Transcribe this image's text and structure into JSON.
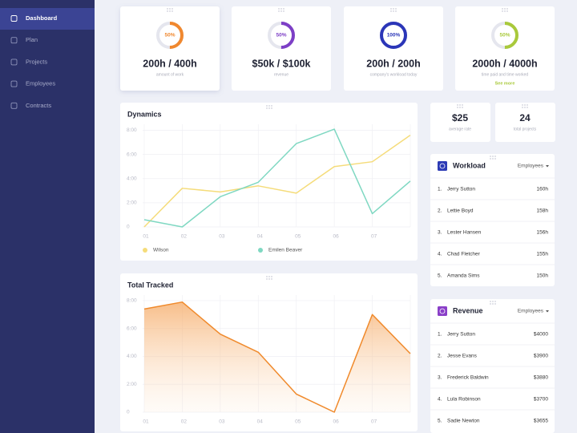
{
  "sidebar": {
    "items": [
      "Dashboard",
      "Plan",
      "Projects",
      "Employees",
      "Contracts"
    ],
    "active": 0
  },
  "stats": [
    {
      "percent": 50,
      "percent_label": "50%",
      "color": "#f0882f",
      "value": "200h / 400h",
      "caption": "amount of work"
    },
    {
      "percent": 50,
      "percent_label": "50%",
      "color": "#7d3fc6",
      "value": "$50k / $100k",
      "caption": "revenue"
    },
    {
      "percent": 100,
      "percent_label": "100%",
      "color": "#2b36b8",
      "value": "200h / 200h",
      "caption": "company's workload today"
    },
    {
      "percent": 50,
      "percent_label": "50%",
      "color": "#a9c93b",
      "value": "2000h / 4000h",
      "caption": "time paid and time worked",
      "link": "See more"
    }
  ],
  "small_stats": [
    {
      "value": "$25",
      "caption": "average rate"
    },
    {
      "value": "24",
      "caption": "total projects"
    }
  ],
  "dynamics": {
    "type": "line",
    "title": "Dynamics",
    "categories": [
      "01",
      "02",
      "03",
      "04",
      "05",
      "06",
      "07",
      null
    ],
    "series": [
      {
        "name": "Wilson",
        "color": "#f5dc7a",
        "values": [
          0,
          3.2,
          2.9,
          3.4,
          2.8,
          5.0,
          5.4,
          7.6
        ]
      },
      {
        "name": "Emilen Beaver",
        "color": "#7fd8c2",
        "values": [
          0.6,
          0,
          2.5,
          3.7,
          6.9,
          8.1,
          1.1,
          3.8
        ]
      }
    ],
    "ylim": [
      0,
      8.5
    ],
    "yticks": [
      0,
      {
        "value": 2,
        "label": "2:00"
      },
      {
        "value": 4,
        "label": "4:00"
      },
      {
        "value": 6,
        "label": "6:00"
      },
      {
        "value": 8,
        "label": "8:00"
      }
    ],
    "grid": true
  },
  "total_tracked": {
    "type": "area",
    "title": "Total Tracked",
    "categories": [
      "01",
      "02",
      "03",
      "04",
      "05",
      "06",
      "07",
      null
    ],
    "series": [
      {
        "color": "#f08a2c",
        "values": [
          7.4,
          7.9,
          5.6,
          4.3,
          1.3,
          0,
          7.0,
          4.2
        ]
      }
    ],
    "ylim": [
      0,
      8.4
    ],
    "yticks": [
      0,
      {
        "value": 2,
        "label": "2:00"
      },
      {
        "value": 4,
        "label": "4:00"
      },
      {
        "value": 6,
        "label": "6:00"
      },
      {
        "value": 8,
        "label": "8:00"
      }
    ],
    "grid": true
  },
  "workload": {
    "title": "Workload",
    "filter": "Employees",
    "color": "#2d3bb5",
    "rows": [
      {
        "rank": "1.",
        "name": "Jerry Sutton",
        "value": "160h"
      },
      {
        "rank": "2.",
        "name": "Lettie Boyd",
        "value": "158h"
      },
      {
        "rank": "3.",
        "name": "Lester Hansen",
        "value": "156h"
      },
      {
        "rank": "4.",
        "name": "Chad Fletcher",
        "value": "155h"
      },
      {
        "rank": "5.",
        "name": "Amanda Sims",
        "value": "150h"
      }
    ]
  },
  "revenue": {
    "title": "Revenue",
    "filter": "Employees",
    "color": "#8a3fc8",
    "rows": [
      {
        "rank": "1.",
        "name": "Jerry Sutton",
        "value": "$4000"
      },
      {
        "rank": "2.",
        "name": "Jesse Evans",
        "value": "$3900"
      },
      {
        "rank": "3.",
        "name": "Frederick Baldwin",
        "value": "$3880"
      },
      {
        "rank": "4.",
        "name": "Lula Robinson",
        "value": "$3700"
      },
      {
        "rank": "5.",
        "name": "Sadie Newton",
        "value": "$3655"
      }
    ]
  }
}
